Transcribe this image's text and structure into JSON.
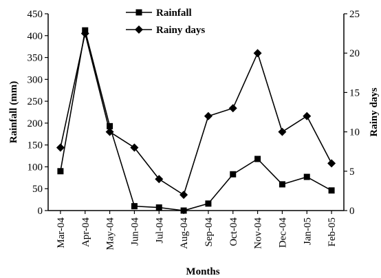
{
  "chart_data": {
    "type": "line",
    "categories": [
      "Mar-04",
      "Apr-04",
      "May-04",
      "Jun-04",
      "Jul-04",
      "Aug-04",
      "Sep-04",
      "Oct-04",
      "Nov-04",
      "Dec-04",
      "Jan-05",
      "Feb-05"
    ],
    "xlabel": "Months",
    "ylabel": "Rainfall (mm)",
    "y2label": "Rainy days",
    "ylim": [
      0,
      450
    ],
    "y2lim": [
      0,
      25
    ],
    "yticks": [
      "0",
      "50",
      "100",
      "150",
      "200",
      "250",
      "300",
      "350",
      "400",
      "450"
    ],
    "y2ticks": [
      "0",
      "5",
      "10",
      "15",
      "20",
      "25"
    ],
    "legend_position": "top-center",
    "grid": false,
    "series": [
      {
        "name": "Rainfall",
        "axis": "left",
        "marker": "square",
        "color": "#000000",
        "values": [
          90,
          412,
          193,
          10,
          7,
          0,
          16,
          83,
          118,
          60,
          77,
          46
        ]
      },
      {
        "name": "Rainy days",
        "axis": "right",
        "marker": "diamond",
        "color": "#000000",
        "values": [
          8,
          22.5,
          10,
          8,
          4,
          2,
          12,
          13,
          20,
          10,
          12,
          6
        ]
      }
    ]
  }
}
